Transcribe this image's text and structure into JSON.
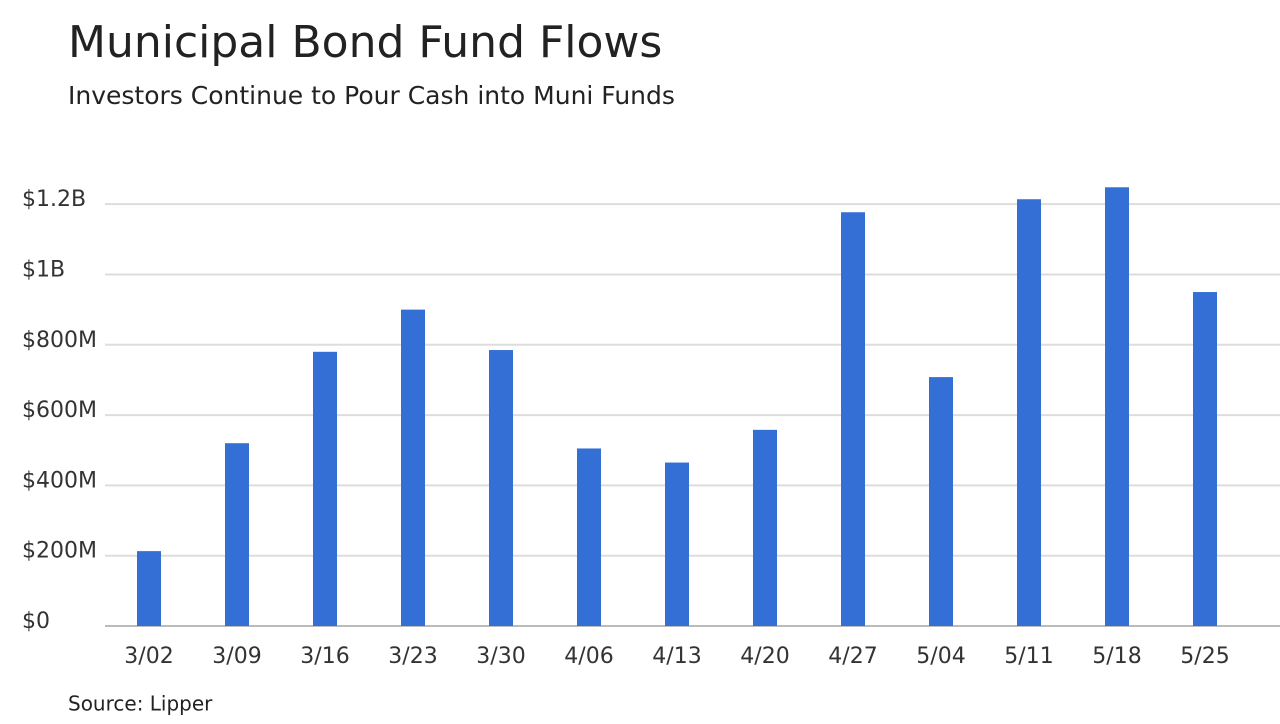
{
  "chart_data": {
    "type": "bar",
    "title": "Municipal Bond Fund Flows",
    "subtitle": "Investors Continue to Pour Cash into Muni Funds",
    "source": "Source: Lipper",
    "categories": [
      "3/02",
      "3/09",
      "3/16",
      "3/23",
      "3/30",
      "4/06",
      "4/13",
      "4/20",
      "4/27",
      "5/04",
      "5/11",
      "5/18",
      "5/25"
    ],
    "values": [
      213000000,
      520000000,
      780000000,
      900000000,
      785000000,
      505000000,
      465000000,
      558000000,
      1177000000,
      708000000,
      1214000000,
      1248000000,
      950000000
    ],
    "color": "#336fd4",
    "ylim": [
      0,
      1300000000
    ],
    "yticks": [
      {
        "value": 0,
        "label": "$0"
      },
      {
        "value": 200000000,
        "label": "$200M"
      },
      {
        "value": 400000000,
        "label": "$400M"
      },
      {
        "value": 600000000,
        "label": "$600M"
      },
      {
        "value": 800000000,
        "label": "$800M"
      },
      {
        "value": 1000000000,
        "label": "$1B"
      },
      {
        "value": 1200000000,
        "label": "$1.2B"
      }
    ],
    "grid": true
  }
}
